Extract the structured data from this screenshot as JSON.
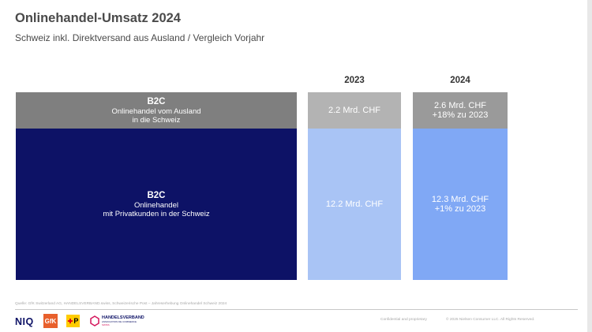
{
  "title": "Onlinehandel-Umsatz 2024",
  "subtitle": "Schweiz inkl. Direktversand aus Ausland / Vergleich Vorjahr",
  "chart_data": {
    "type": "bar",
    "title": "Onlinehandel-Umsatz 2024",
    "subtitle": "Schweiz inkl. Direktversand aus Ausland / Vergleich Vorjahr",
    "unit": "Mrd. CHF",
    "categories": [
      "2023",
      "2024"
    ],
    "stacked": true,
    "segments": [
      {
        "title": "B2C",
        "lines": [
          "Onlinehandel vom Ausland",
          "in die Schweiz"
        ],
        "values": [
          2.2,
          2.6
        ],
        "labels": [
          "2.2 Mrd. CHF",
          "2.6 Mrd. CHF"
        ],
        "change_labels": [
          "",
          "+18% zu 2023"
        ],
        "label_color": "#7f7f7f",
        "colors": [
          "#b3b3b3",
          "#9a9a9a"
        ]
      },
      {
        "title": "B2C",
        "lines": [
          "Onlinehandel",
          "mit Privatkunden in der Schweiz"
        ],
        "values": [
          12.2,
          12.3
        ],
        "labels": [
          "12.2 Mrd. CHF",
          "12.3 Mrd. CHF"
        ],
        "change_labels": [
          "",
          "+1% zu 2023"
        ],
        "label_color": "#0d1266",
        "colors": [
          "#a9c4f5",
          "#80a8f5"
        ]
      }
    ]
  },
  "footer": {
    "source": "Quelle: GfK Switzerland AG, HANDELSVERBAND.swiss, Schweizerische Post – Jahreserhebung Onlinehandel Schweiz 2024",
    "confidential": "Confidential and proprietary",
    "copyright": "© 2025 Nielsen Consumer LLC. All Rights Reserved."
  },
  "logos": {
    "niq": "NIQ",
    "gfk": "GfK",
    "post": "P",
    "handelsverband": "HANDELSVERBAND",
    "handelsverband_sub": "ASSOCIATION DE COMMERCE",
    "handelsverband_sub2": "SWISS"
  },
  "colors": {
    "foreign_label_bg": "#7f7f7f",
    "domestic_label_bg": "#0d1266",
    "niq_navy": "#0d1266",
    "gfk_orange": "#e8602c",
    "post_yellow": "#ffcc00",
    "handelsverband_red": "#d4145a"
  },
  "icons": [
    "niq-logo",
    "gfk-logo",
    "post-logo",
    "handelsverband-logo"
  ]
}
